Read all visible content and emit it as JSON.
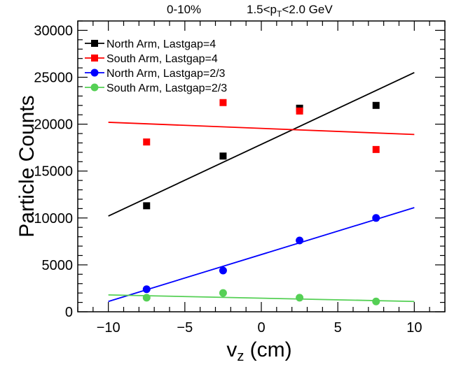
{
  "header": {
    "centrality": "0-10%",
    "pt_prefix": "1.5<p",
    "pt_sub": "T",
    "pt_suffix": "<2.0 GeV"
  },
  "chart_data": {
    "type": "scatter",
    "x_main": "v",
    "x_sub": "z",
    "x_unit": " (cm)",
    "ylabel": "Particle Counts",
    "xlim": [
      -12,
      12
    ],
    "ylim": [
      0,
      31000
    ],
    "xticks": [
      -10,
      -5,
      0,
      5,
      10
    ],
    "xtick_labels": [
      "−10",
      "−5",
      "0",
      "5",
      "10"
    ],
    "yticks": [
      0,
      5000,
      10000,
      15000,
      20000,
      25000,
      30000
    ],
    "ytick_labels": [
      "0",
      "5000",
      "10000",
      "15000",
      "20000",
      "25000",
      "30000"
    ],
    "legend_position": "top-left",
    "grid": false,
    "series": [
      {
        "name": "North Arm, Lastgap=4",
        "color": "#000000",
        "marker": "square",
        "x": [
          -7.5,
          -2.5,
          2.5,
          7.5
        ],
        "y": [
          11300,
          16600,
          21700,
          22000
        ],
        "fit": [
          [
            -10,
            10200
          ],
          [
            10,
            25500
          ]
        ]
      },
      {
        "name": "South Arm, Lastgap=4",
        "color": "#ff0000",
        "marker": "square",
        "x": [
          -7.5,
          -2.5,
          2.5,
          7.5
        ],
        "y": [
          18100,
          22300,
          21400,
          17300
        ],
        "fit": [
          [
            -10,
            20200
          ],
          [
            10,
            18900
          ]
        ]
      },
      {
        "name": "North Arm, Lastgap=2/3",
        "color": "#0000ff",
        "marker": "circle",
        "x": [
          -7.5,
          -2.5,
          2.5,
          7.5
        ],
        "y": [
          2400,
          4400,
          7600,
          10000
        ],
        "fit": [
          [
            -10,
            1100
          ],
          [
            10,
            11100
          ]
        ]
      },
      {
        "name": "South Arm, Lastgap=2/3",
        "color": "#55d055",
        "marker": "circle",
        "x": [
          -7.5,
          -2.5,
          2.5,
          7.5
        ],
        "y": [
          1500,
          2000,
          1500,
          1100
        ],
        "fit": [
          [
            -10,
            1800
          ],
          [
            10,
            1100
          ]
        ]
      }
    ]
  }
}
